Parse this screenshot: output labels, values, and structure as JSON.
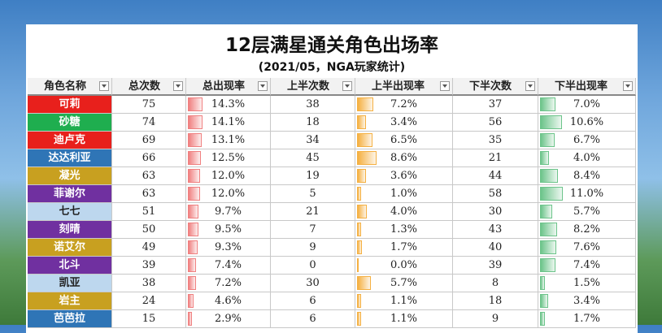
{
  "header": {
    "title": "12层满星通关角色出场率",
    "subtitle": "(2021/05，NGA玩家统计)"
  },
  "table": {
    "columns": [
      "角色名称",
      "总次数",
      "总出现率",
      "上半次数",
      "上半出现率",
      "下半次数",
      "下半出现率"
    ],
    "bar_colors": {
      "2": "#f08080",
      "4": "#f5b041",
      "6": "#6cc48a"
    },
    "rows": [
      {
        "cells": [
          "可莉",
          "75",
          "14.3%",
          "38",
          "7.2%",
          "37",
          "7.0%"
        ],
        "color": "#e8201c"
      },
      {
        "cells": [
          "砂糖",
          "74",
          "14.1%",
          "18",
          "3.4%",
          "56",
          "10.6%"
        ],
        "color": "#1fae4f"
      },
      {
        "cells": [
          "迪卢克",
          "69",
          "13.1%",
          "34",
          "6.5%",
          "35",
          "6.7%"
        ],
        "color": "#e8201c"
      },
      {
        "cells": [
          "达达利亚",
          "66",
          "12.5%",
          "45",
          "8.6%",
          "21",
          "4.0%"
        ],
        "color": "#2f75b6"
      },
      {
        "cells": [
          "凝光",
          "63",
          "12.0%",
          "19",
          "3.6%",
          "44",
          "8.4%"
        ],
        "color": "#c8a020"
      },
      {
        "cells": [
          "菲谢尔",
          "63",
          "12.0%",
          "5",
          "1.0%",
          "58",
          "11.0%"
        ],
        "color": "#7030a0"
      },
      {
        "cells": [
          "七七",
          "51",
          "9.7%",
          "21",
          "4.0%",
          "30",
          "5.7%"
        ],
        "color": "#bdd7ee"
      },
      {
        "cells": [
          "刻晴",
          "50",
          "9.5%",
          "7",
          "1.3%",
          "43",
          "8.2%"
        ],
        "color": "#7030a0"
      },
      {
        "cells": [
          "诺艾尔",
          "49",
          "9.3%",
          "9",
          "1.7%",
          "40",
          "7.6%"
        ],
        "color": "#c8a020"
      },
      {
        "cells": [
          "北斗",
          "39",
          "7.4%",
          "0",
          "0.0%",
          "39",
          "7.4%"
        ],
        "color": "#7030a0"
      },
      {
        "cells": [
          "凯亚",
          "38",
          "7.2%",
          "30",
          "5.7%",
          "8",
          "1.5%"
        ],
        "color": "#bdd7ee"
      },
      {
        "cells": [
          "岩主",
          "24",
          "4.6%",
          "6",
          "1.1%",
          "18",
          "3.4%"
        ],
        "color": "#c8a020"
      },
      {
        "cells": [
          "芭芭拉",
          "15",
          "2.9%",
          "6",
          "1.1%",
          "9",
          "1.7%"
        ],
        "color": "#2f75b6"
      }
    ]
  }
}
